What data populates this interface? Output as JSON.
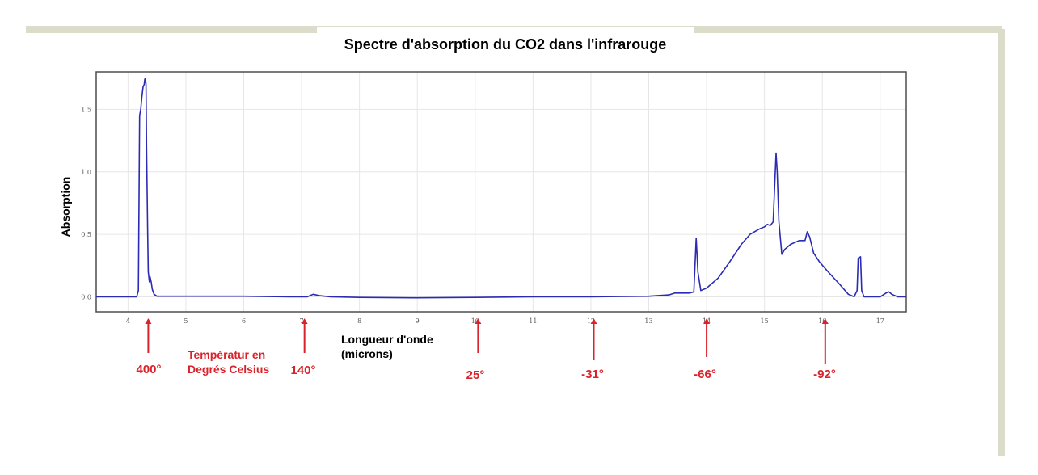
{
  "chart_data": {
    "type": "line",
    "title": "Spectre d'absorption du CO2 dans l'infrarouge",
    "xlabel_lines": [
      "Longueur d'onde",
      "(microns)"
    ],
    "ylabel": "Absorption",
    "xlim": [
      3.45,
      17.45
    ],
    "ylim": [
      -0.12,
      1.8
    ],
    "x_ticks": [
      4,
      5,
      6,
      7,
      8,
      9,
      10,
      11,
      12,
      13,
      14,
      15,
      16,
      17
    ],
    "y_ticks": [
      0.0,
      0.5,
      1.0,
      1.5
    ],
    "y_tick_labels": [
      "0.0",
      "0.5",
      "1.0",
      "1.5"
    ],
    "grid": true,
    "line_color": "#2b2bb3",
    "series": [
      {
        "points": [
          [
            3.45,
            0.0
          ],
          [
            4.15,
            0.0
          ],
          [
            4.18,
            0.05
          ],
          [
            4.2,
            1.45
          ],
          [
            4.22,
            1.5
          ],
          [
            4.24,
            1.6
          ],
          [
            4.26,
            1.68
          ],
          [
            4.28,
            1.7
          ],
          [
            4.29,
            1.74
          ],
          [
            4.3,
            1.75
          ],
          [
            4.31,
            1.7
          ],
          [
            4.32,
            1.2
          ],
          [
            4.33,
            0.85
          ],
          [
            4.34,
            0.5
          ],
          [
            4.35,
            0.2
          ],
          [
            4.37,
            0.12
          ],
          [
            4.38,
            0.16
          ],
          [
            4.4,
            0.12
          ],
          [
            4.42,
            0.06
          ],
          [
            4.45,
            0.02
          ],
          [
            4.5,
            0.005
          ],
          [
            5.0,
            0.005
          ],
          [
            6.0,
            0.005
          ],
          [
            6.8,
            0.0
          ],
          [
            7.1,
            0.0
          ],
          [
            7.2,
            0.02
          ],
          [
            7.3,
            0.01
          ],
          [
            7.5,
            0.0
          ],
          [
            8.0,
            -0.005
          ],
          [
            9.0,
            -0.008
          ],
          [
            10.0,
            -0.005
          ],
          [
            11.0,
            0.0
          ],
          [
            12.0,
            0.0
          ],
          [
            13.0,
            0.005
          ],
          [
            13.35,
            0.015
          ],
          [
            13.45,
            0.03
          ],
          [
            13.7,
            0.03
          ],
          [
            13.78,
            0.04
          ],
          [
            13.82,
            0.47
          ],
          [
            13.85,
            0.2
          ],
          [
            13.9,
            0.05
          ],
          [
            14.0,
            0.07
          ],
          [
            14.2,
            0.15
          ],
          [
            14.4,
            0.28
          ],
          [
            14.6,
            0.42
          ],
          [
            14.75,
            0.5
          ],
          [
            14.9,
            0.54
          ],
          [
            15.0,
            0.56
          ],
          [
            15.05,
            0.58
          ],
          [
            15.1,
            0.57
          ],
          [
            15.15,
            0.6
          ],
          [
            15.2,
            1.15
          ],
          [
            15.22,
            1.0
          ],
          [
            15.25,
            0.6
          ],
          [
            15.3,
            0.34
          ],
          [
            15.35,
            0.38
          ],
          [
            15.45,
            0.42
          ],
          [
            15.6,
            0.45
          ],
          [
            15.7,
            0.45
          ],
          [
            15.74,
            0.52
          ],
          [
            15.78,
            0.48
          ],
          [
            15.85,
            0.35
          ],
          [
            15.95,
            0.28
          ],
          [
            16.1,
            0.2
          ],
          [
            16.3,
            0.1
          ],
          [
            16.45,
            0.02
          ],
          [
            16.55,
            0.0
          ],
          [
            16.6,
            0.05
          ],
          [
            16.62,
            0.31
          ],
          [
            16.66,
            0.32
          ],
          [
            16.68,
            0.05
          ],
          [
            16.72,
            0.0
          ],
          [
            16.8,
            0.0
          ],
          [
            17.0,
            0.0
          ],
          [
            17.1,
            0.03
          ],
          [
            17.15,
            0.04
          ],
          [
            17.2,
            0.02
          ],
          [
            17.3,
            0.0
          ],
          [
            17.45,
            0.0
          ]
        ]
      }
    ]
  },
  "temperatures": {
    "caption_lines": [
      "Températur en",
      "Degrés Celsius"
    ],
    "markers": [
      {
        "x": 4.35,
        "label": "400°"
      },
      {
        "x": 7.05,
        "label": "140°"
      },
      {
        "x": 10.05,
        "label": "25°"
      },
      {
        "x": 12.05,
        "label": "-31°"
      },
      {
        "x": 14.0,
        "label": "-66°"
      },
      {
        "x": 16.05,
        "label": "-92°"
      }
    ]
  }
}
